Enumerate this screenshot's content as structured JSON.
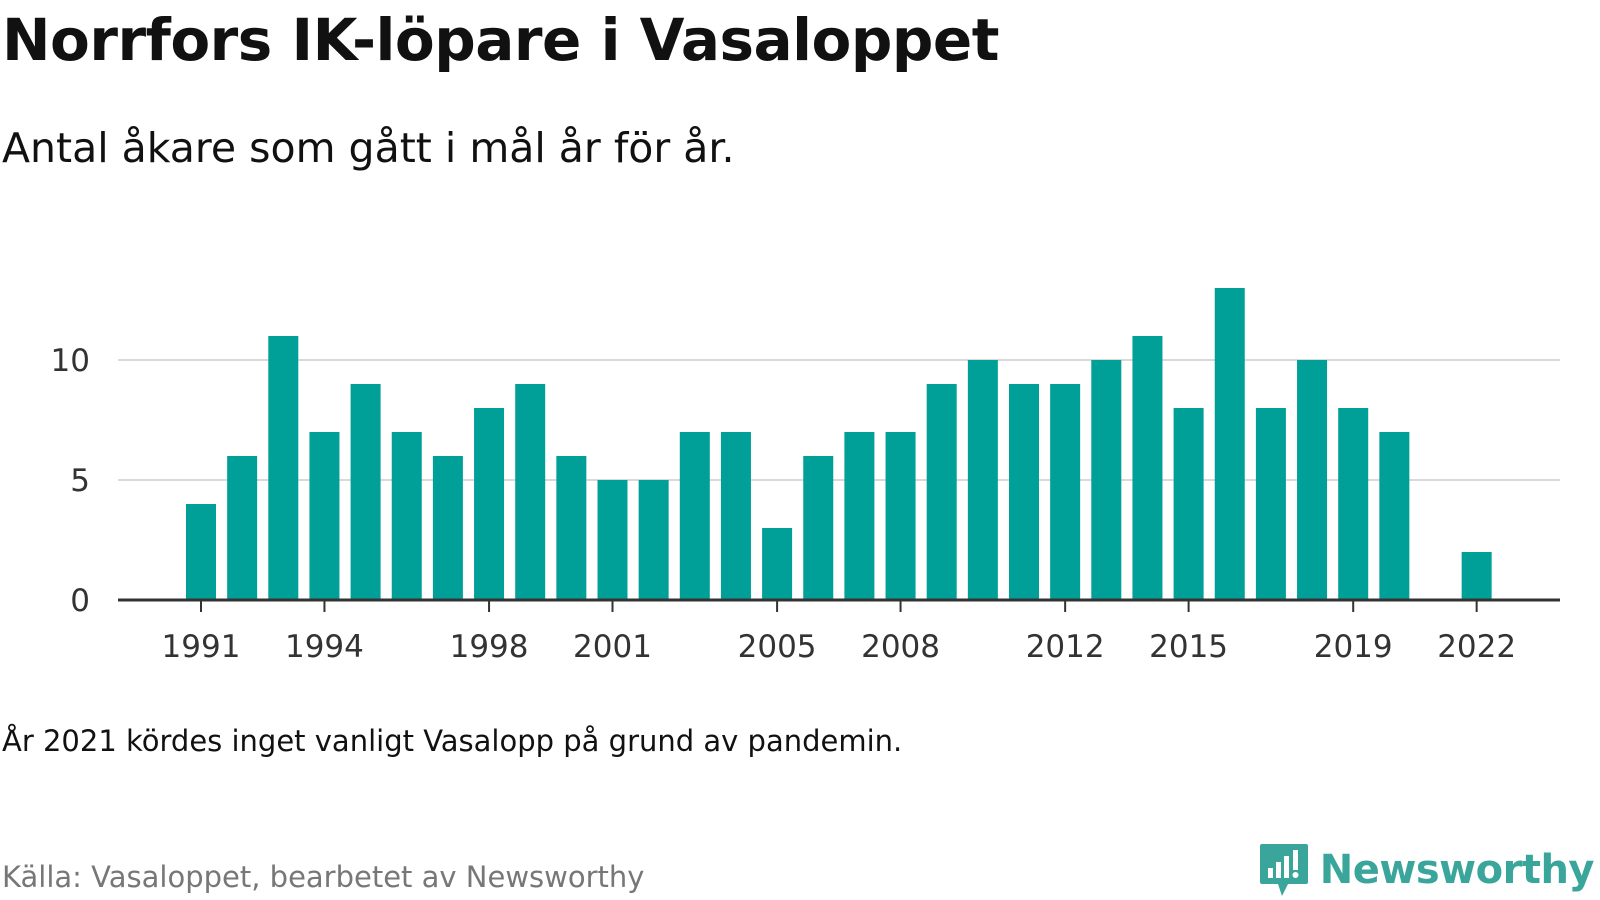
{
  "title": "Norrfors IK-löpare i Vasaloppet",
  "subtitle": "Antal åkare som gått i mål år för år.",
  "note": "År 2021 kördes inget vanligt Vasalopp på grund av pandemin.",
  "source": "Källa: Vasaloppet, bearbetet av Newsworthy",
  "brand": {
    "name": "Newsworthy",
    "icon": "newsworthy-logo-icon"
  },
  "colors": {
    "bar": "#00a098",
    "grid": "#d9d9d9",
    "axis": "#333333",
    "brand": "#3aa69b"
  },
  "chart_data": {
    "type": "bar",
    "title": "Norrfors IK-löpare i Vasaloppet",
    "subtitle": "Antal åkare som gått i mål år för år.",
    "xlabel": "",
    "ylabel": "",
    "categories": [
      1991,
      1992,
      1993,
      1994,
      1995,
      1996,
      1997,
      1998,
      1999,
      2000,
      2001,
      2002,
      2003,
      2004,
      2005,
      2006,
      2007,
      2008,
      2009,
      2010,
      2011,
      2012,
      2013,
      2014,
      2015,
      2016,
      2017,
      2018,
      2019,
      2020,
      2021,
      2022
    ],
    "values": [
      4,
      6,
      11,
      7,
      9,
      7,
      6,
      8,
      9,
      6,
      5,
      5,
      7,
      7,
      3,
      6,
      7,
      7,
      9,
      10,
      9,
      9,
      10,
      11,
      8,
      13,
      8,
      10,
      8,
      7,
      null,
      2
    ],
    "ylim": [
      0,
      13
    ],
    "yticks": [
      0,
      5,
      10
    ],
    "xticks": [
      1991,
      1994,
      1998,
      2001,
      2005,
      2008,
      2012,
      2015,
      2019,
      2022
    ],
    "grid": true,
    "legend": "none"
  }
}
